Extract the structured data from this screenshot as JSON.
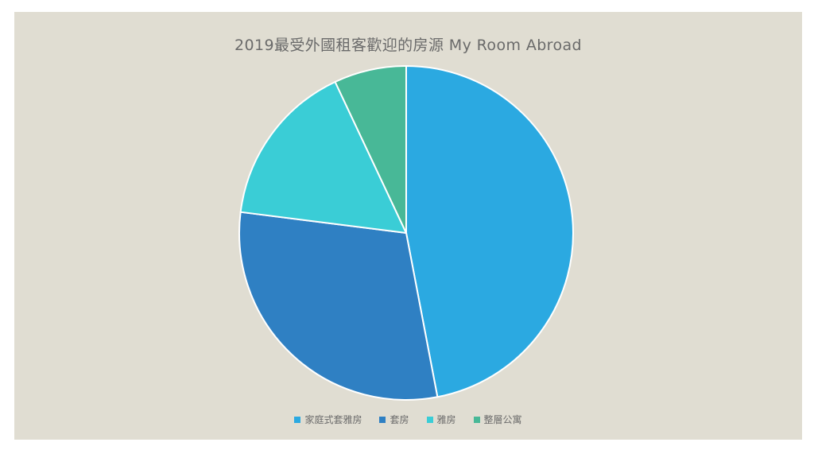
{
  "colors": {
    "page_background": "#FFFFFF",
    "canvas_background": "#E0DDD2",
    "title_text": "#6A6A6A",
    "legend_text": "#6B6B6B",
    "slice_border": "#FFFFFF"
  },
  "chart_data": {
    "type": "pie",
    "title": "2019最受外國租客歡迎的房源 My Room Abroad",
    "legend_position": "bottom",
    "direction": "clockwise",
    "start_angle_deg": 0,
    "series": [
      {
        "label": "家庭式套雅房",
        "value": 47,
        "color": "#2BA9E1"
      },
      {
        "label": "套房",
        "value": 30,
        "color": "#2F80C3"
      },
      {
        "label": "雅房",
        "value": 16,
        "color": "#3ACDD6"
      },
      {
        "label": "整層公寓",
        "value": 7,
        "color": "#48B897"
      }
    ]
  }
}
